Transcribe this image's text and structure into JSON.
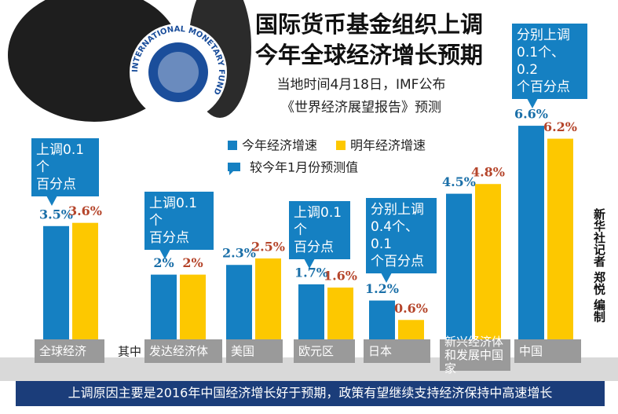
{
  "logo_text": "INTERNATIONAL MONETARY FUND",
  "chart_data": {
    "type": "bar",
    "title": [
      "国际货币基金组织上调",
      "今年全球经济增长预期"
    ],
    "subtitle": [
      "当地时间4月18日，IMF公布",
      "《世界经济展望报告》预测"
    ],
    "categories": [
      "全球经济",
      "发达经济体",
      "美国",
      "欧元区",
      "日本",
      "新兴经济体\n和发展中国家",
      "中国"
    ],
    "group_label": "其中",
    "series": [
      {
        "name": "今年经济增速",
        "color": "#1580c2",
        "values": [
          3.5,
          2,
          2.3,
          1.7,
          1.2,
          4.5,
          6.6
        ],
        "value_labels": [
          "3.5%",
          "2%",
          "2.3%",
          "1.7%",
          "1.2%",
          "4.5%",
          "6.6%"
        ]
      },
      {
        "name": "明年经济增速",
        "color": "#fdc800",
        "values": [
          3.6,
          2,
          2.5,
          1.6,
          0.6,
          4.8,
          6.2
        ],
        "value_labels": [
          "3.6%",
          "2%",
          "2.5%",
          "1.6%",
          "0.6%",
          "4.8%",
          "6.2%"
        ]
      }
    ],
    "legend_note": "较今年1月份预测值",
    "annotations": [
      {
        "category": 0,
        "text": "上调0.1个\n百分点"
      },
      {
        "category": 1,
        "text": "上调0.1个\n百分点"
      },
      {
        "category": 3,
        "text": "上调0.1个\n百分点"
      },
      {
        "category": 4,
        "text": "分别上调\n0.4个、0.1\n个百分点"
      },
      {
        "category": 6,
        "text": "分别上调\n0.1个、0.2\n个百分点"
      }
    ],
    "footnote": "上调原因主要是2016年中国经济增长好于预期，政策有望继续支持经济保持中高速增长",
    "credit": "新华社记者 郑悦 编制"
  }
}
